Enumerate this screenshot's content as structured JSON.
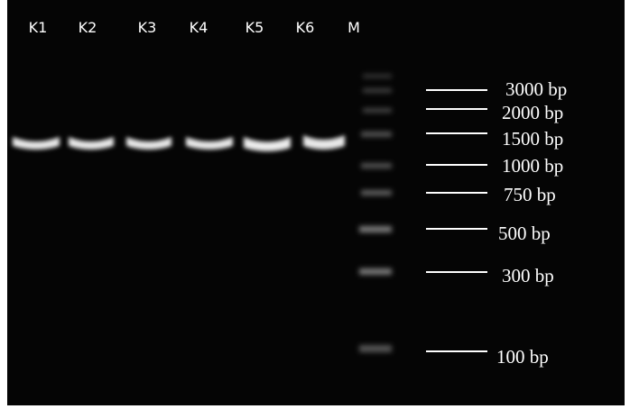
{
  "lanes": [
    "K1",
    "K2",
    "K3",
    "K4",
    "K5",
    "K6",
    "M"
  ],
  "ladder": [
    "3000 bp",
    "2000 bp",
    "1500 bp",
    "1000 bp",
    "750 bp",
    "500 bp",
    "300 bp",
    "100 bp"
  ]
}
